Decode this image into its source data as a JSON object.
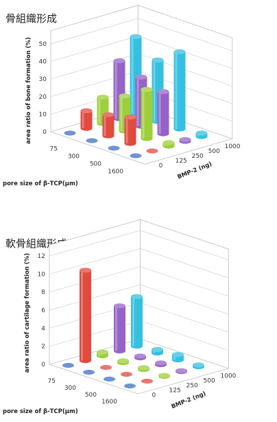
{
  "chart_data": [
    {
      "type": "bar3d",
      "title": "骨組織形成",
      "ylabel": "area ratio of bone formation (%)",
      "xlabel": "pore size of β-TCP(μm)",
      "zlabel": "BMP-2 (ng)",
      "x_categories": [
        "75",
        "300",
        "500",
        "1600"
      ],
      "z_categories": [
        "0",
        "125",
        "250",
        "500",
        "1000"
      ],
      "yticks": [
        "0",
        "10",
        "20",
        "30",
        "40",
        "50"
      ],
      "ylim": [
        0,
        50
      ],
      "series": [
        {
          "bmp": "0",
          "color": "#3f6fc6",
          "values": [
            0,
            0,
            0,
            0
          ]
        },
        {
          "bmp": "125",
          "color": "#e04a3f",
          "values": [
            10,
            12,
            15,
            0
          ]
        },
        {
          "bmp": "250",
          "color": "#9ccf3a",
          "values": [
            15,
            20,
            28,
            2
          ]
        },
        {
          "bmp": "500",
          "color": "#9563c8",
          "values": [
            33,
            28,
            24,
            1
          ]
        },
        {
          "bmp": "1000",
          "color": "#35c0e0",
          "values": [
            44,
            35,
            44,
            2
          ]
        }
      ]
    },
    {
      "type": "bar3d",
      "title": "軟骨組織形成",
      "ylabel": "area ratio of cartilage  formation (%)",
      "xlabel": "pore size of β-TCP(μm)",
      "zlabel": "BMP-2 (ng)",
      "x_categories": [
        "75",
        "300",
        "500",
        "1600"
      ],
      "z_categories": [
        "0",
        "125",
        "250",
        "500",
        "1000"
      ],
      "yticks": [
        "0",
        "2",
        "4",
        "6",
        "8",
        "10",
        "12"
      ],
      "ylim": [
        0,
        12
      ],
      "series": [
        {
          "bmp": "0",
          "color": "#3f6fc6",
          "values": [
            0,
            0,
            0,
            0
          ]
        },
        {
          "bmp": "125",
          "color": "#e04a3f",
          "values": [
            10,
            0,
            0,
            0
          ]
        },
        {
          "bmp": "250",
          "color": "#9ccf3a",
          "values": [
            0.4,
            0.2,
            0.2,
            0.1
          ]
        },
        {
          "bmp": "500",
          "color": "#9563c8",
          "values": [
            5,
            0.2,
            0.2,
            0.1
          ]
        },
        {
          "bmp": "1000",
          "color": "#35c0e0",
          "values": [
            5.5,
            0.4,
            0.6,
            0.2
          ]
        }
      ]
    }
  ]
}
